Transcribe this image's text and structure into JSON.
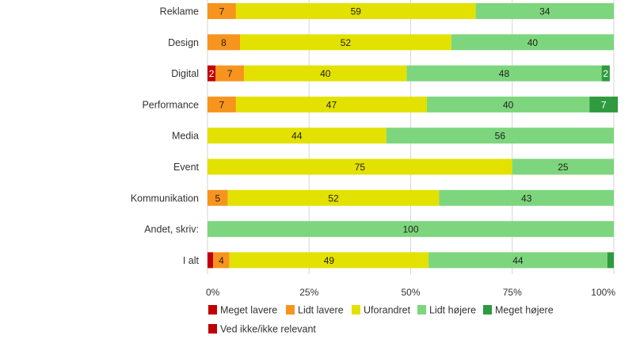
{
  "chart_data": {
    "type": "bar",
    "orientation": "horizontal",
    "stacked": true,
    "percent_scale": true,
    "categories": [
      "Reklame",
      "Design",
      "Digital",
      "Performance",
      "Media",
      "Event",
      "Kommunikation",
      "Andet, skriv:",
      "I alt"
    ],
    "series": [
      {
        "name": "Meget lavere",
        "color": "#c00000",
        "values": [
          0,
          0,
          2,
          0,
          0,
          0,
          0,
          0,
          1.4
        ]
      },
      {
        "name": "Lidt lavere",
        "color": "#f7941d",
        "values": [
          7,
          8,
          7,
          7,
          0,
          0,
          5,
          0,
          4
        ]
      },
      {
        "name": "Uforandret",
        "color": "#e3e100",
        "values": [
          59,
          52,
          40,
          47,
          44,
          75,
          52,
          0,
          49
        ]
      },
      {
        "name": "Lidt højere",
        "color": "#7dd67d",
        "values": [
          34,
          40,
          48,
          40,
          56,
          25,
          43,
          100,
          44
        ]
      },
      {
        "name": "Meget højere",
        "color": "#2f9a3f",
        "values": [
          0,
          0,
          2,
          7,
          0,
          0,
          0,
          0,
          1.6
        ]
      },
      {
        "name": "Ved ikke/ikke relevant",
        "color": "#c00000",
        "values": [
          0,
          0,
          0,
          0,
          0,
          0,
          0,
          0,
          0
        ]
      }
    ],
    "data_labels": [
      [
        "",
        "7",
        "59",
        "34",
        ""
      ],
      [
        "",
        "8",
        "52",
        "40",
        ""
      ],
      [
        "2",
        "7",
        "40",
        "48",
        "2"
      ],
      [
        "",
        "7",
        "47",
        "40",
        "7"
      ],
      [
        "",
        "",
        "44",
        "56",
        ""
      ],
      [
        "",
        "",
        "75",
        "25",
        ""
      ],
      [
        "",
        "5",
        "52",
        "43",
        ""
      ],
      [
        "",
        "",
        "",
        "100",
        ""
      ],
      [
        "",
        "4",
        "49",
        "44",
        ""
      ]
    ],
    "x_ticks": [
      "0%",
      "25%",
      "50%",
      "75%",
      "100%"
    ],
    "xlim": [
      0,
      100
    ],
    "grid": true,
    "legend": "bottom-left"
  }
}
